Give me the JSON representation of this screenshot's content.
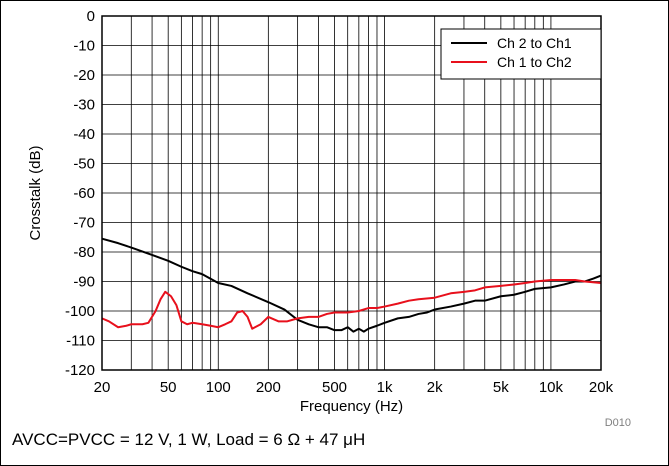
{
  "chart_data": {
    "type": "line",
    "xscale": "log",
    "xlim": [
      20,
      20000
    ],
    "ylim": [
      -120,
      0
    ],
    "xticks": [
      20,
      50,
      100,
      200,
      500,
      1000,
      2000,
      5000,
      10000,
      20000
    ],
    "xtick_labels": [
      "20",
      "50",
      "100",
      "200",
      "500",
      "1k",
      "2k",
      "5k",
      "10k",
      "20k"
    ],
    "yticks": [
      0,
      -10,
      -20,
      -30,
      -40,
      -50,
      -60,
      -70,
      -80,
      -90,
      -100,
      -110,
      -120
    ],
    "ytick_labels": [
      "0",
      "-10",
      "-20",
      "-30",
      "-40",
      "-50",
      "-60",
      "-70",
      "-80",
      "-90",
      "-100",
      "-110",
      "-120"
    ],
    "xlabel": "Frequency (Hz)",
    "ylabel": "Crosstalk (dB)",
    "grid": true,
    "legend_position": "top-right",
    "series": [
      {
        "name": "Ch 2 to Ch1",
        "color": "#000000",
        "x": [
          20,
          25,
          30,
          40,
          50,
          60,
          70,
          80,
          100,
          120,
          150,
          200,
          250,
          300,
          350,
          400,
          450,
          500,
          550,
          600,
          650,
          700,
          750,
          800,
          900,
          1000,
          1200,
          1400,
          1600,
          1800,
          2000,
          2500,
          3000,
          3500,
          4000,
          5000,
          6000,
          7000,
          8000,
          10000,
          12000,
          14000,
          16000,
          18000,
          20000
        ],
        "y": [
          -75.5,
          -77,
          -78.5,
          -81,
          -83,
          -85,
          -86.5,
          -87.5,
          -90.5,
          -91.5,
          -94,
          -97,
          -99.5,
          -103,
          -104.5,
          -105.5,
          -105.5,
          -106.5,
          -106.5,
          -105.5,
          -107,
          -106,
          -107,
          -106,
          -105,
          -104,
          -102.5,
          -102,
          -101,
          -100.5,
          -99.5,
          -98.5,
          -97.5,
          -96.5,
          -96.5,
          -95,
          -94.5,
          -93.5,
          -92.5,
          -92,
          -91,
          -90,
          -90,
          -89,
          -88
        ]
      },
      {
        "name": "Ch 1 to Ch2",
        "color": "#e8101c",
        "x": [
          20,
          22,
          25,
          28,
          30,
          35,
          38,
          42,
          45,
          48,
          52,
          56,
          60,
          65,
          70,
          80,
          90,
          100,
          110,
          120,
          130,
          140,
          150,
          160,
          180,
          200,
          230,
          260,
          300,
          350,
          400,
          450,
          500,
          600,
          700,
          800,
          900,
          1000,
          1200,
          1400,
          1600,
          2000,
          2500,
          3000,
          3500,
          4000,
          5000,
          6000,
          7000,
          8000,
          10000,
          12000,
          14000,
          16000,
          20000
        ],
        "y": [
          -102.5,
          -103.5,
          -105.5,
          -105,
          -104.5,
          -104.5,
          -104,
          -100,
          -96,
          -93.5,
          -95,
          -98,
          -103.5,
          -104.5,
          -104,
          -104.5,
          -105,
          -105.5,
          -104.5,
          -103.5,
          -100.5,
          -100,
          -102,
          -106,
          -104.5,
          -102,
          -103.5,
          -103.5,
          -102.5,
          -102,
          -102,
          -101,
          -100.5,
          -100.5,
          -100,
          -99,
          -99,
          -98.5,
          -97.5,
          -96.5,
          -96,
          -95.5,
          -94,
          -93.5,
          -93,
          -92,
          -91.5,
          -91,
          -90.5,
          -90,
          -89.5,
          -89.5,
          -89.5,
          -90,
          -90.5
        ]
      }
    ]
  },
  "figure_id": "D010",
  "caption": "AVCC=PVCC = 12 V, 1 W, Load = 6 Ω + 47 μH"
}
